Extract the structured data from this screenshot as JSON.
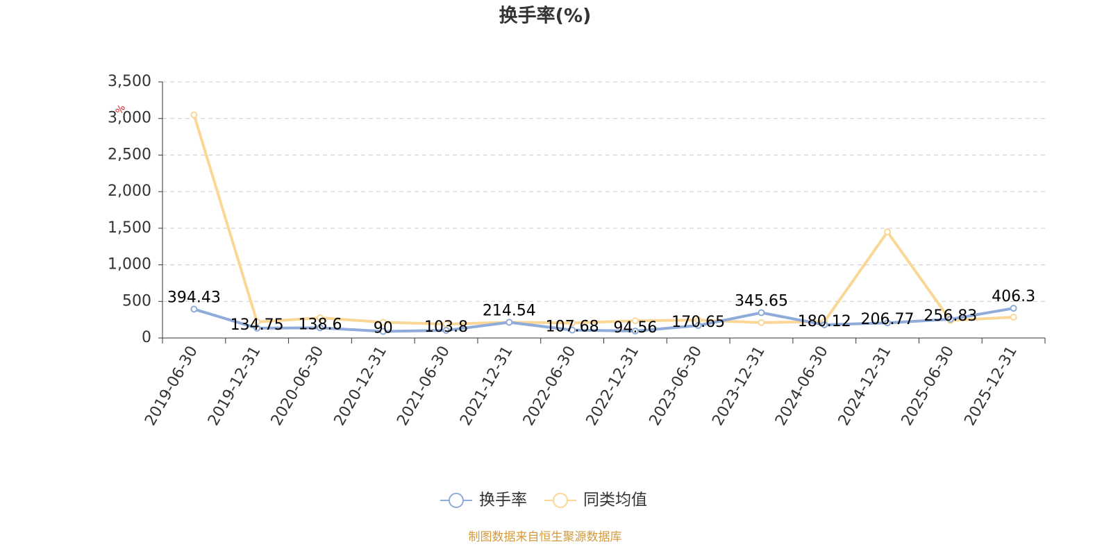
{
  "chart_data": {
    "type": "line",
    "title": "换手率(%)",
    "y_unit": "%",
    "categories": [
      "2019-06-30",
      "2019-12-31",
      "2020-06-30",
      "2020-12-31",
      "2021-06-30",
      "2021-12-31",
      "2022-06-30",
      "2022-12-31",
      "2023-06-30",
      "2023-12-31",
      "2024-06-30",
      "2024-12-31",
      "2025-06-30",
      "2025-12-31"
    ],
    "series": [
      {
        "name": "换手率",
        "color": "#8eabd9",
        "values": [
          394.43,
          134.75,
          138.6,
          90,
          103.8,
          214.54,
          107.68,
          94.56,
          170.65,
          345.65,
          180.12,
          206.77,
          256.83,
          406.3
        ]
      },
      {
        "name": "同类均值",
        "color": "#fad797",
        "values": [
          3050,
          220,
          275,
          215,
          190,
          215,
          205,
          235,
          245,
          210,
          225,
          1450,
          240,
          285
        ]
      }
    ],
    "ylim": [
      0,
      3500
    ],
    "yticks": [
      0,
      500,
      {
        "value": 1000,
        "label": "1,000"
      },
      {
        "value": 1500,
        "label": "1,500"
      },
      {
        "value": 2000,
        "label": "2,000"
      },
      {
        "value": 2500,
        "label": "2,500"
      },
      {
        "value": 3000,
        "label": "3,000"
      },
      {
        "value": 3500,
        "label": "3,500"
      }
    ],
    "grid": true,
    "source": "制图数据来自恒生聚源数据库"
  }
}
